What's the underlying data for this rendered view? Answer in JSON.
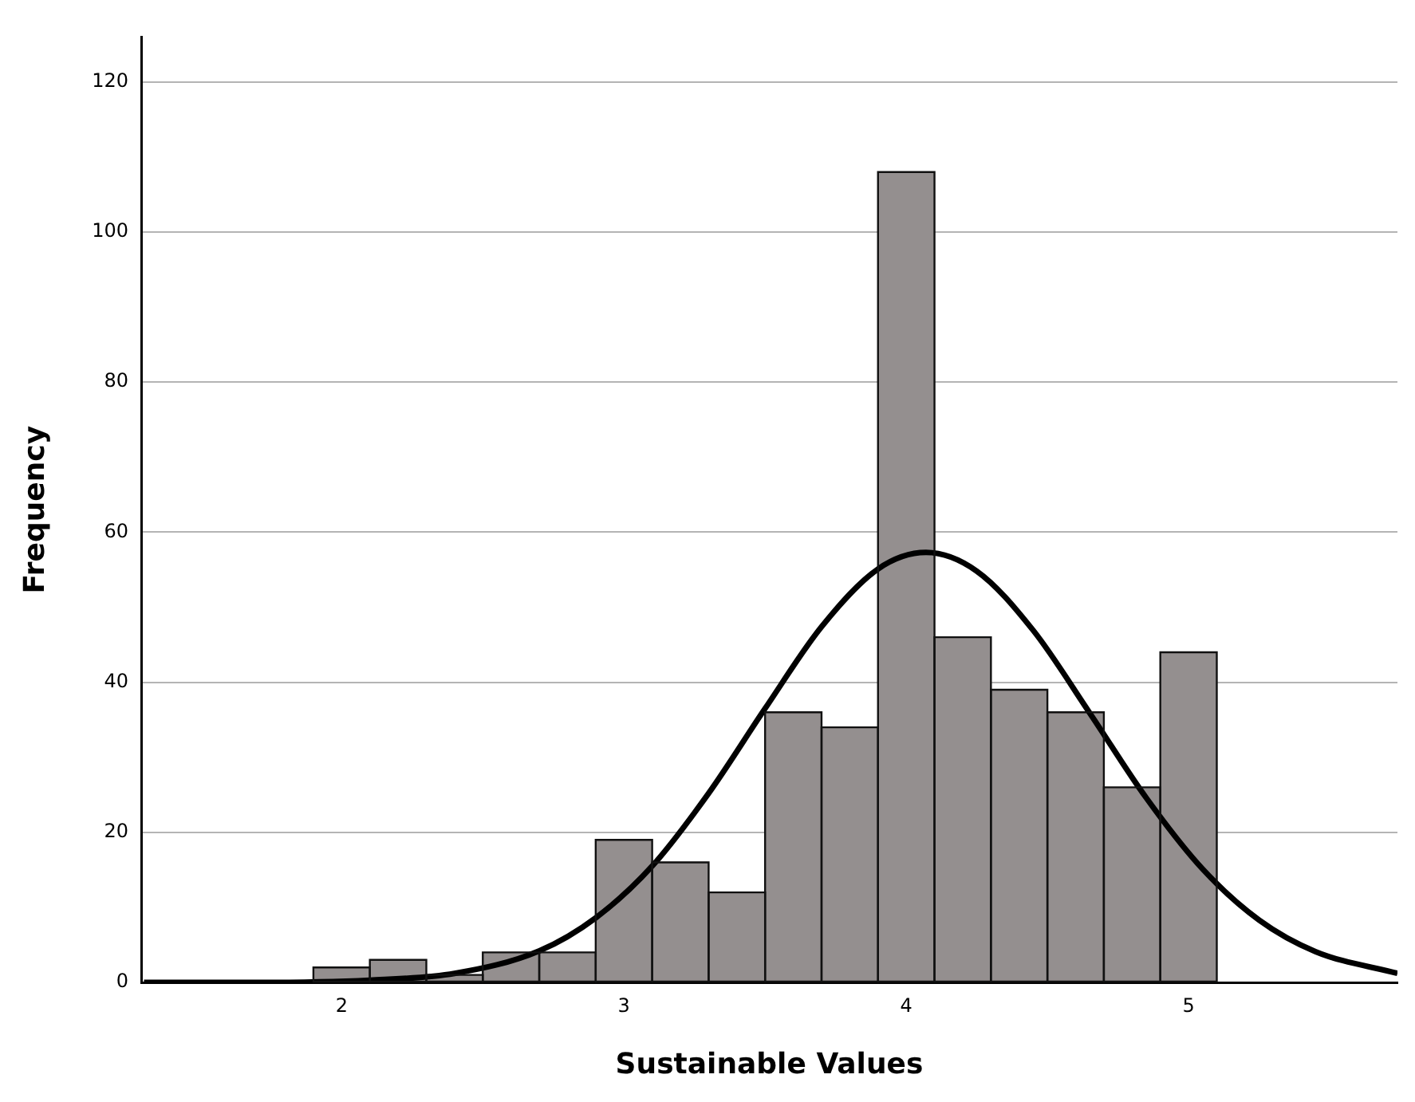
{
  "chart_data": {
    "type": "histogram",
    "xlabel": "Sustainable Values",
    "ylabel": "Frequency",
    "bins": [
      1.9,
      2.1,
      2.3,
      2.5,
      2.7,
      2.9,
      3.1,
      3.3,
      3.5,
      3.7,
      3.9,
      4.1,
      4.3,
      4.5,
      4.7,
      4.9,
      5.1
    ],
    "series": [
      {
        "color": "#948f8f",
        "values": [
          2,
          3,
          1,
          4,
          4,
          19,
          16,
          12,
          36,
          34,
          108,
          46,
          39,
          36,
          26,
          44
        ]
      },
      {
        "type": "line",
        "color": "#000000",
        "x": [
          1.3,
          1.7,
          2.1,
          2.4,
          2.7,
          2.9,
          3.1,
          3.3,
          3.5,
          3.7,
          3.9,
          4.07,
          4.25,
          4.45,
          4.65,
          4.85,
          5.05,
          5.25,
          5.45,
          5.74
        ],
        "values": [
          0,
          0,
          0.3,
          1.2,
          4.2,
          8.6,
          15.5,
          25.2,
          36.5,
          47.4,
          55.1,
          57.3,
          54.8,
          46.9,
          35.9,
          24.6,
          15.1,
          8.3,
          4.1,
          1.2
        ]
      }
    ],
    "xlim": [
      1.29,
      5.74
    ],
    "xticks": [
      2,
      3,
      4,
      5
    ],
    "ylim": [
      0,
      126
    ],
    "yticks": [
      0,
      20,
      40,
      60,
      80,
      100,
      120
    ],
    "grid": "y",
    "legend": false,
    "marker": "none",
    "line_style": "solid"
  }
}
